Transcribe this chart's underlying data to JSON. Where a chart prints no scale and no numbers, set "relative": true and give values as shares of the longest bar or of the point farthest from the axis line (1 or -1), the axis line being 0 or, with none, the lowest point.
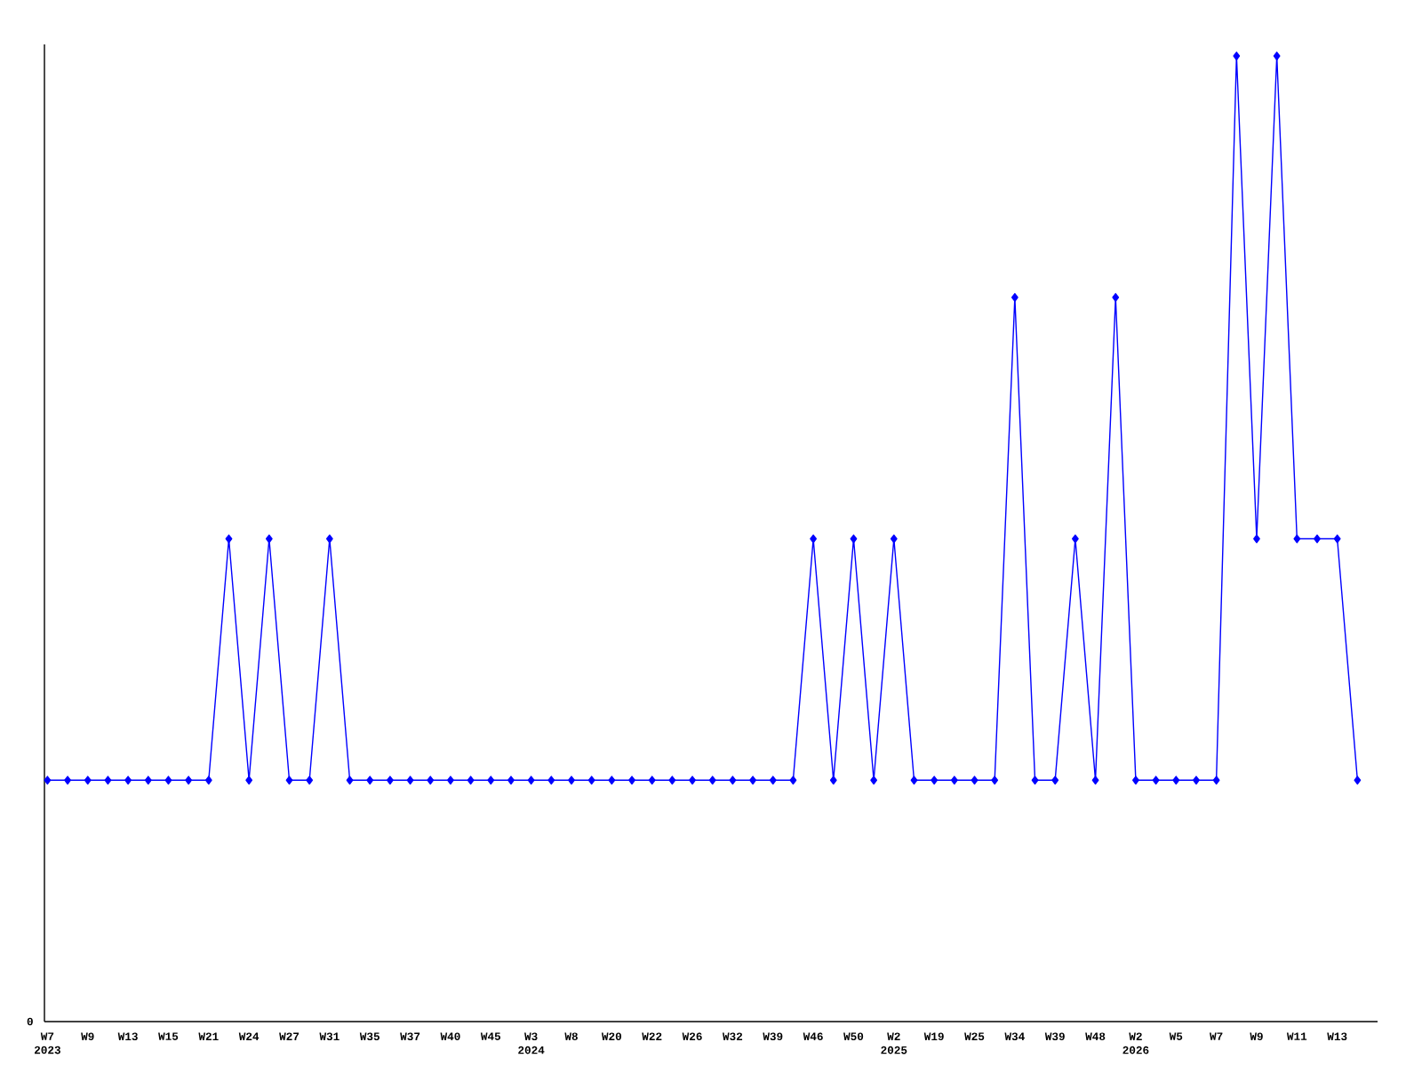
{
  "chart_data": {
    "type": "line",
    "relative": true,
    "marker": "diamond",
    "color": "#0000ff",
    "categories": [
      "W7 2023",
      null,
      "W9",
      null,
      "W13",
      null,
      "W15",
      null,
      "W21",
      null,
      "W24",
      null,
      "W27",
      null,
      "W31",
      null,
      "W35",
      null,
      "W37",
      null,
      "W40",
      null,
      "W45",
      null,
      "W3 2024",
      null,
      "W8",
      null,
      "W20",
      null,
      "W22",
      null,
      "W26",
      null,
      "W32",
      null,
      "W39",
      null,
      "W46",
      null,
      "W50",
      null,
      "W2 2025",
      null,
      "W19",
      null,
      "W25",
      null,
      "W34",
      null,
      "W39",
      null,
      "W48",
      null,
      "W2 2026",
      null,
      "W5",
      null,
      "W7",
      null,
      "W9",
      null,
      "W11",
      null,
      "W13",
      null
    ],
    "values": [
      0.25,
      0.25,
      0.25,
      0.25,
      0.25,
      0.25,
      0.25,
      0.25,
      0.25,
      0.5,
      0.25,
      0.5,
      0.25,
      0.25,
      0.5,
      0.25,
      0.25,
      0.25,
      0.25,
      0.25,
      0.25,
      0.25,
      0.25,
      0.25,
      0.25,
      0.25,
      0.25,
      0.25,
      0.25,
      0.25,
      0.25,
      0.25,
      0.25,
      0.25,
      0.25,
      0.25,
      0.25,
      0.25,
      0.5,
      0.25,
      0.5,
      0.25,
      0.5,
      0.25,
      0.25,
      0.25,
      0.25,
      0.25,
      0.75,
      0.25,
      0.25,
      0.5,
      0.25,
      0.75,
      0.25,
      0.25,
      0.25,
      0.25,
      0.25,
      1,
      0.5,
      1,
      0.5,
      0.5,
      0.5,
      0.25
    ],
    "annotations": [
      "0"
    ]
  }
}
